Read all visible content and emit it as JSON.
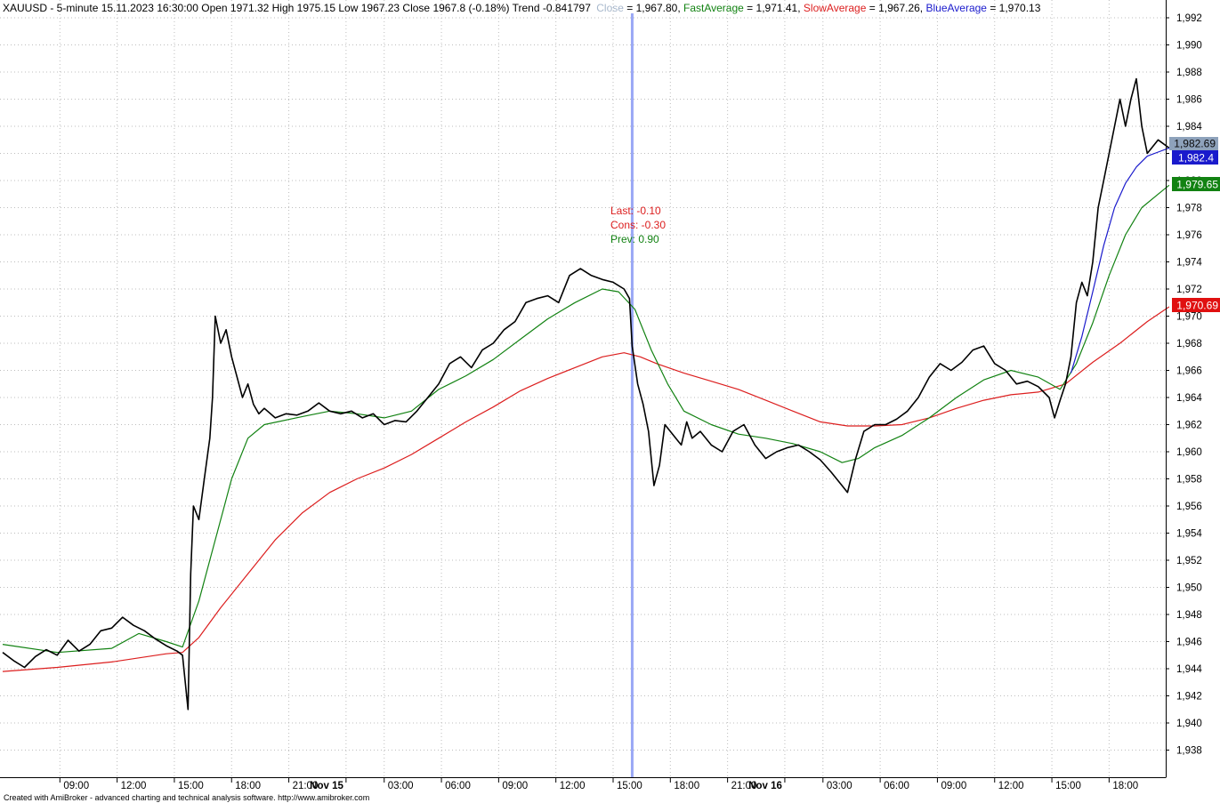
{
  "header": {
    "symbol_info": "XAUUSD - 5-minute 15.11.2023 16:30:00 Open 1971.32 High 1975.15 Low 1967.23 Close 1967.8 (-0.18%) Trend -0.841797",
    "close_label": "Close",
    "close_value": " = 1,967.80, ",
    "fast_label": "FastAverage",
    "fast_value": " = 1,971.41, ",
    "slow_label": "SlowAverage",
    "slow_value": " = 1,967.26, ",
    "blue_label": "BlueAverage",
    "blue_value": " = 1,970.13"
  },
  "colors": {
    "price": "#000000",
    "fast": "#128212",
    "slow": "#dc1e1e",
    "blue": "#1a1acc",
    "close_label": "#a8b8cc",
    "cursor": "#9aa8f5",
    "grid": "#bdbdbd"
  },
  "annotation": {
    "last": "Last: -0.10",
    "cons": "Cons: -0.30",
    "prev": "Prev: 0.90"
  },
  "price_tags": {
    "close": "1,982.69",
    "blue": "1,982.4",
    "fast": "1,979.65",
    "slow": "1,970.69"
  },
  "footer": {
    "credit": "Created with AmiBroker - advanced charting and technical analysis software. http://www.amibroker.com"
  },
  "chart_data": {
    "type": "line",
    "title": "XAUUSD - 5-minute",
    "y_ticks": [
      "1,992",
      "1,990",
      "1,988",
      "1,986",
      "1,984",
      "1,982",
      "1,980",
      "1,978",
      "1,976",
      "1,974",
      "1,972",
      "1,970",
      "1,968",
      "1,966",
      "1,964",
      "1,962",
      "1,960",
      "1,958",
      "1,956",
      "1,954",
      "1,952",
      "1,950",
      "1,948",
      "1,946",
      "1,944",
      "1,942",
      "1,940",
      "1,938"
    ],
    "ylim": [
      1937,
      1992.5
    ],
    "xlim": [
      0,
      416
    ],
    "x_ticks": [
      {
        "t": 21,
        "label": "09:00",
        "bold": false
      },
      {
        "t": 42,
        "label": "12:00",
        "bold": false
      },
      {
        "t": 63,
        "label": "15:00",
        "bold": false
      },
      {
        "t": 84,
        "label": "18:00",
        "bold": false
      },
      {
        "t": 105,
        "label": "21:00",
        "bold": false
      },
      {
        "t": 126,
        "label": "Nov 15",
        "bold": true
      },
      {
        "t": 140,
        "label": "03:00",
        "bold": false
      },
      {
        "t": 161,
        "label": "06:00",
        "bold": false
      },
      {
        "t": 182,
        "label": "09:00",
        "bold": false
      },
      {
        "t": 203,
        "label": "12:00",
        "bold": false
      },
      {
        "t": 224,
        "label": "15:00",
        "bold": false
      },
      {
        "t": 245,
        "label": "18:00",
        "bold": false
      },
      {
        "t": 266,
        "label": "21:00",
        "bold": false
      },
      {
        "t": 287,
        "label": "Nov 16",
        "bold": true
      },
      {
        "t": 301,
        "label": "03:00",
        "bold": false
      },
      {
        "t": 322,
        "label": "06:00",
        "bold": false
      },
      {
        "t": 343,
        "label": "09:00",
        "bold": false
      },
      {
        "t": 364,
        "label": "12:00",
        "bold": false
      },
      {
        "t": 385,
        "label": "15:00",
        "bold": false
      },
      {
        "t": 406,
        "label": "18:00",
        "bold": false
      }
    ],
    "cursor_t": 231,
    "grid": true,
    "price_path": [
      [
        0,
        1945.2
      ],
      [
        4,
        1944.6
      ],
      [
        8,
        1944.1
      ],
      [
        12,
        1944.9
      ],
      [
        16,
        1945.4
      ],
      [
        20,
        1945.0
      ],
      [
        24,
        1946.1
      ],
      [
        28,
        1945.3
      ],
      [
        32,
        1945.8
      ],
      [
        36,
        1946.8
      ],
      [
        40,
        1947.0
      ],
      [
        44,
        1947.8
      ],
      [
        48,
        1947.2
      ],
      [
        52,
        1946.8
      ],
      [
        56,
        1946.2
      ],
      [
        60,
        1945.7
      ],
      [
        64,
        1945.3
      ],
      [
        66,
        1945.0
      ],
      [
        68,
        1941.0
      ],
      [
        69,
        1951.0
      ],
      [
        70,
        1956.0
      ],
      [
        72,
        1955.0
      ],
      [
        74,
        1958.0
      ],
      [
        76,
        1961.0
      ],
      [
        77,
        1964.0
      ],
      [
        78,
        1970.0
      ],
      [
        80,
        1968.0
      ],
      [
        82,
        1969.0
      ],
      [
        84,
        1967.0
      ],
      [
        86,
        1965.5
      ],
      [
        88,
        1964.0
      ],
      [
        90,
        1965.0
      ],
      [
        92,
        1963.5
      ],
      [
        94,
        1962.8
      ],
      [
        96,
        1963.2
      ],
      [
        100,
        1962.5
      ],
      [
        104,
        1962.8
      ],
      [
        108,
        1962.7
      ],
      [
        112,
        1963.0
      ],
      [
        116,
        1963.6
      ],
      [
        120,
        1963.0
      ],
      [
        124,
        1962.8
      ],
      [
        128,
        1963.0
      ],
      [
        132,
        1962.5
      ],
      [
        136,
        1962.8
      ],
      [
        140,
        1962.0
      ],
      [
        144,
        1962.3
      ],
      [
        148,
        1962.2
      ],
      [
        152,
        1963.0
      ],
      [
        156,
        1964.0
      ],
      [
        160,
        1965.0
      ],
      [
        164,
        1966.5
      ],
      [
        168,
        1967.0
      ],
      [
        172,
        1966.2
      ],
      [
        176,
        1967.5
      ],
      [
        180,
        1968.0
      ],
      [
        184,
        1969.0
      ],
      [
        188,
        1969.6
      ],
      [
        192,
        1971.0
      ],
      [
        196,
        1971.3
      ],
      [
        200,
        1971.5
      ],
      [
        204,
        1971.0
      ],
      [
        208,
        1973.0
      ],
      [
        212,
        1973.5
      ],
      [
        216,
        1973.0
      ],
      [
        220,
        1972.7
      ],
      [
        224,
        1972.5
      ],
      [
        228,
        1972.0
      ],
      [
        230,
        1971.3
      ],
      [
        231,
        1967.8
      ],
      [
        233,
        1965.0
      ],
      [
        235,
        1963.5
      ],
      [
        237,
        1961.5
      ],
      [
        239,
        1957.5
      ],
      [
        241,
        1959.0
      ],
      [
        243,
        1962.0
      ],
      [
        245,
        1961.5
      ],
      [
        247,
        1961.0
      ],
      [
        249,
        1960.5
      ],
      [
        251,
        1962.2
      ],
      [
        253,
        1961.0
      ],
      [
        256,
        1961.5
      ],
      [
        260,
        1960.5
      ],
      [
        264,
        1960.0
      ],
      [
        268,
        1961.5
      ],
      [
        272,
        1962.0
      ],
      [
        276,
        1960.5
      ],
      [
        280,
        1959.5
      ],
      [
        284,
        1960.0
      ],
      [
        288,
        1960.3
      ],
      [
        292,
        1960.5
      ],
      [
        296,
        1960.0
      ],
      [
        300,
        1959.4
      ],
      [
        304,
        1958.5
      ],
      [
        308,
        1957.5
      ],
      [
        310,
        1957.0
      ],
      [
        313,
        1959.5
      ],
      [
        316,
        1961.5
      ],
      [
        320,
        1962.0
      ],
      [
        324,
        1962.0
      ],
      [
        328,
        1962.4
      ],
      [
        332,
        1963.0
      ],
      [
        336,
        1964.0
      ],
      [
        340,
        1965.5
      ],
      [
        344,
        1966.5
      ],
      [
        348,
        1966.0
      ],
      [
        352,
        1966.6
      ],
      [
        356,
        1967.5
      ],
      [
        360,
        1967.8
      ],
      [
        364,
        1966.5
      ],
      [
        368,
        1966.0
      ],
      [
        372,
        1965.0
      ],
      [
        376,
        1965.2
      ],
      [
        380,
        1964.8
      ],
      [
        384,
        1964.0
      ],
      [
        386,
        1962.5
      ],
      [
        388,
        1963.8
      ],
      [
        390,
        1965.0
      ],
      [
        392,
        1967.0
      ],
      [
        394,
        1971.0
      ],
      [
        396,
        1972.5
      ],
      [
        398,
        1971.5
      ],
      [
        400,
        1974.0
      ],
      [
        402,
        1978.0
      ],
      [
        404,
        1980.0
      ],
      [
        406,
        1982.0
      ],
      [
        408,
        1984.0
      ],
      [
        410,
        1986.0
      ],
      [
        412,
        1984.0
      ],
      [
        414,
        1986.0
      ],
      [
        416,
        1987.5
      ],
      [
        418,
        1984.0
      ],
      [
        420,
        1982.0
      ],
      [
        424,
        1983.0
      ],
      [
        428,
        1982.4
      ]
    ],
    "series": [
      {
        "name": "FastAverage",
        "points": [
          [
            0,
            1945.8
          ],
          [
            20,
            1945.2
          ],
          [
            40,
            1945.5
          ],
          [
            50,
            1946.6
          ],
          [
            60,
            1946.0
          ],
          [
            66,
            1945.6
          ],
          [
            72,
            1949.0
          ],
          [
            78,
            1953.5
          ],
          [
            84,
            1958.0
          ],
          [
            90,
            1961.0
          ],
          [
            96,
            1962.0
          ],
          [
            110,
            1962.6
          ],
          [
            120,
            1963.0
          ],
          [
            130,
            1962.8
          ],
          [
            140,
            1962.5
          ],
          [
            150,
            1963.0
          ],
          [
            160,
            1964.6
          ],
          [
            170,
            1965.6
          ],
          [
            180,
            1966.8
          ],
          [
            190,
            1968.3
          ],
          [
            200,
            1969.8
          ],
          [
            210,
            1971.0
          ],
          [
            220,
            1972.0
          ],
          [
            226,
            1971.8
          ],
          [
            232,
            1970.5
          ],
          [
            238,
            1967.5
          ],
          [
            244,
            1965.0
          ],
          [
            250,
            1963.0
          ],
          [
            260,
            1962.0
          ],
          [
            270,
            1961.3
          ],
          [
            280,
            1961.0
          ],
          [
            290,
            1960.6
          ],
          [
            300,
            1960.0
          ],
          [
            308,
            1959.2
          ],
          [
            314,
            1959.5
          ],
          [
            320,
            1960.3
          ],
          [
            330,
            1961.2
          ],
          [
            340,
            1962.5
          ],
          [
            350,
            1964.0
          ],
          [
            360,
            1965.3
          ],
          [
            370,
            1966.0
          ],
          [
            380,
            1965.5
          ],
          [
            388,
            1964.6
          ],
          [
            394,
            1966.5
          ],
          [
            400,
            1969.5
          ],
          [
            406,
            1973.0
          ],
          [
            412,
            1976.0
          ],
          [
            418,
            1978.0
          ],
          [
            424,
            1979.0
          ],
          [
            428,
            1979.65
          ]
        ]
      },
      {
        "name": "SlowAverage",
        "points": [
          [
            0,
            1943.8
          ],
          [
            20,
            1944.1
          ],
          [
            40,
            1944.5
          ],
          [
            60,
            1945.1
          ],
          [
            66,
            1945.2
          ],
          [
            72,
            1946.3
          ],
          [
            80,
            1948.5
          ],
          [
            90,
            1951.0
          ],
          [
            100,
            1953.5
          ],
          [
            110,
            1955.5
          ],
          [
            120,
            1957.0
          ],
          [
            130,
            1958.0
          ],
          [
            140,
            1958.8
          ],
          [
            150,
            1959.8
          ],
          [
            160,
            1961.0
          ],
          [
            170,
            1962.2
          ],
          [
            180,
            1963.3
          ],
          [
            190,
            1964.5
          ],
          [
            200,
            1965.4
          ],
          [
            210,
            1966.2
          ],
          [
            220,
            1967.0
          ],
          [
            228,
            1967.3
          ],
          [
            234,
            1967.0
          ],
          [
            240,
            1966.5
          ],
          [
            250,
            1965.8
          ],
          [
            260,
            1965.2
          ],
          [
            270,
            1964.6
          ],
          [
            280,
            1963.8
          ],
          [
            290,
            1963.0
          ],
          [
            300,
            1962.2
          ],
          [
            310,
            1961.9
          ],
          [
            320,
            1961.9
          ],
          [
            330,
            1962.0
          ],
          [
            340,
            1962.5
          ],
          [
            350,
            1963.2
          ],
          [
            360,
            1963.8
          ],
          [
            370,
            1964.2
          ],
          [
            380,
            1964.4
          ],
          [
            390,
            1965.0
          ],
          [
            400,
            1966.6
          ],
          [
            410,
            1968.0
          ],
          [
            420,
            1969.6
          ],
          [
            428,
            1970.69
          ]
        ]
      },
      {
        "name": "BlueAverage",
        "points": [
          [
            392,
            1965.8
          ],
          [
            396,
            1968.5
          ],
          [
            400,
            1971.8
          ],
          [
            404,
            1975.2
          ],
          [
            408,
            1978.0
          ],
          [
            412,
            1979.8
          ],
          [
            416,
            1981.0
          ],
          [
            420,
            1981.8
          ],
          [
            424,
            1982.1
          ],
          [
            428,
            1982.4
          ]
        ]
      }
    ]
  }
}
